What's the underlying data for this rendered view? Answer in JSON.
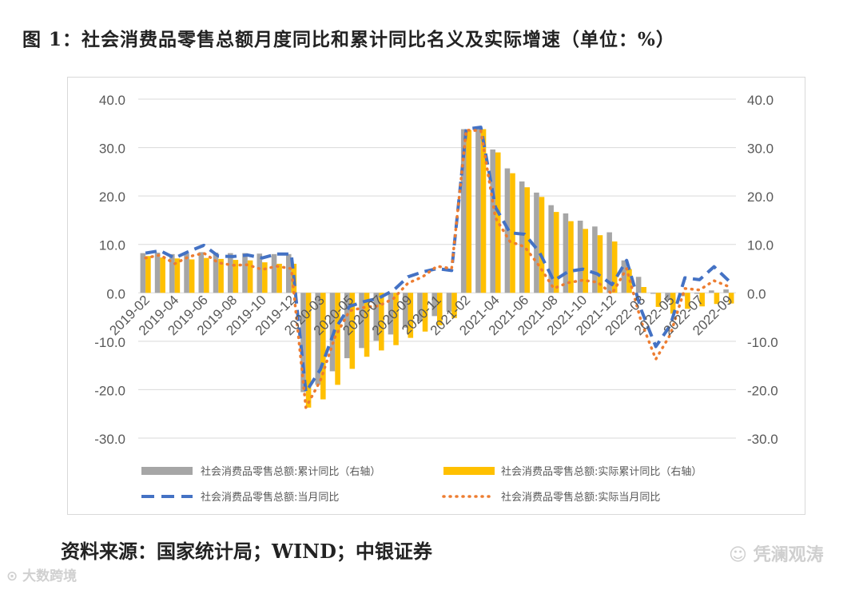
{
  "figure_title": "图 1：社会消费品零售总额月度同比和累计同比名义及实际增速（单位：%）",
  "source_text": "资料来源：国家统计局；WIND；中银证券",
  "watermark_left": "大数跨境",
  "watermark_right": "凭澜观涛",
  "colors": {
    "cum_nominal": "#a6a6a6",
    "cum_real": "#ffc000",
    "mon_nominal": "#4472c4",
    "mon_real": "#ed7d31",
    "axis_text": "#595959",
    "grid": "#d9d9d9"
  },
  "chart_data": {
    "type": "bar",
    "x": [
      "2019-02",
      "2019-03",
      "2019-04",
      "2019-05",
      "2019-06",
      "2019-07",
      "2019-08",
      "2019-09",
      "2019-10",
      "2019-11",
      "2019-12",
      "2020-02",
      "2020-03",
      "2020-04",
      "2020-05",
      "2020-06",
      "2020-07",
      "2020-08",
      "2020-09",
      "2020-10",
      "2020-11",
      "2020-12",
      "2021-02",
      "2021-03",
      "2021-04",
      "2021-05",
      "2021-06",
      "2021-07",
      "2021-08",
      "2021-09",
      "2021-10",
      "2021-11",
      "2021-12",
      "2022-02",
      "2022-03",
      "2022-04",
      "2022-05",
      "2022-06",
      "2022-07",
      "2022-08",
      "2022-09"
    ],
    "x_tick_labels": [
      "2019-02",
      "2019-04",
      "2019-06",
      "2019-08",
      "2019-10",
      "2019-12",
      "2020-03",
      "2020-05",
      "2020-07",
      "2020-09",
      "2020-11",
      "2021-02",
      "2021-04",
      "2021-06",
      "2021-08",
      "2021-10",
      "2021-12",
      "2022-03",
      "2022-05",
      "2022-07",
      "2022-09"
    ],
    "y_ticks": [
      "40.0",
      "30.0",
      "20.0",
      "10.0",
      "0.0",
      "-10.0",
      "-20.0",
      "-30.0"
    ],
    "ylim": [
      -30,
      40
    ],
    "y2lim": [
      -30,
      40
    ],
    "grid": true,
    "legend_position": "bottom",
    "series": [
      {
        "name": "社会消费品零售总额:累计同比（右轴）",
        "type": "bar",
        "values": [
          8.2,
          8.3,
          8.0,
          8.1,
          8.4,
          8.3,
          8.2,
          8.2,
          8.1,
          8.0,
          8.0,
          -20.5,
          -19.0,
          -16.2,
          -13.5,
          -11.4,
          -9.9,
          -8.6,
          -7.2,
          -5.9,
          -4.8,
          -3.9,
          33.8,
          33.9,
          29.6,
          25.7,
          23.0,
          20.7,
          18.1,
          16.4,
          14.9,
          13.7,
          12.5,
          6.7,
          3.3,
          -0.2,
          -1.5,
          -0.7,
          -0.2,
          0.5,
          0.7
        ]
      },
      {
        "name": "社会消费品零售总额:实际累计同比（右轴）",
        "type": "bar",
        "values": [
          7.6,
          7.3,
          7.1,
          6.9,
          7.2,
          7.0,
          6.8,
          6.7,
          6.3,
          6.0,
          6.0,
          -23.7,
          -22.0,
          -19.0,
          -15.7,
          -13.2,
          -11.9,
          -10.8,
          -9.3,
          -8.0,
          -6.7,
          -5.2,
          33.6,
          33.8,
          29.0,
          24.7,
          21.8,
          19.8,
          16.7,
          14.8,
          13.2,
          11.9,
          10.6,
          4.9,
          1.2,
          -2.9,
          -4.3,
          -3.3,
          -2.8,
          -2.3,
          -2.2
        ]
      },
      {
        "name": "社会消费品零售总额:当月同比",
        "type": "line",
        "style": "dashed",
        "values": [
          8.2,
          8.7,
          7.2,
          8.6,
          9.8,
          7.6,
          7.5,
          7.8,
          7.2,
          8.0,
          8.0,
          -20.5,
          -15.8,
          -7.5,
          -2.8,
          -1.8,
          -1.1,
          0.5,
          3.3,
          4.3,
          5.0,
          4.6,
          33.8,
          34.2,
          17.7,
          12.4,
          12.1,
          8.5,
          2.5,
          4.4,
          4.9,
          3.9,
          1.7,
          6.7,
          -3.5,
          -11.1,
          -6.7,
          3.1,
          2.7,
          5.4,
          2.5
        ]
      },
      {
        "name": "社会消费品零售总额:实际当月同比",
        "type": "line",
        "style": "dotted",
        "values": [
          7.2,
          7.8,
          6.0,
          7.5,
          8.2,
          6.2,
          5.7,
          5.8,
          4.8,
          5.5,
          5.0,
          -23.7,
          -18.1,
          -9.1,
          -3.7,
          -3.0,
          -2.7,
          -1.2,
          2.0,
          3.3,
          5.5,
          5.0,
          33.6,
          33.5,
          15.5,
          10.6,
          9.5,
          5.6,
          0.9,
          2.1,
          2.6,
          2.2,
          -0.2,
          5.0,
          -5.9,
          -13.7,
          -8.6,
          0.9,
          0.6,
          2.5,
          1.3
        ]
      }
    ]
  }
}
